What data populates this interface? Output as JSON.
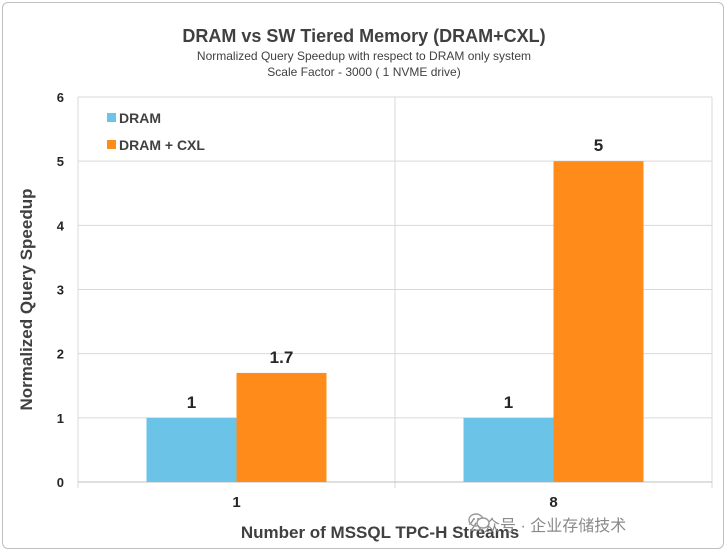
{
  "title": "DRAM vs SW Tiered Memory (DRAM+CXL)",
  "subtitle": "Normalized Query Speedup with respect to DRAM only system",
  "subtitle2": "Scale Factor - 3000 ( 1 NVME drive)",
  "watermark": "公众号 · 企业存储技术",
  "colors": {
    "DRAM": "#6cc3e8",
    "DRAM + CXL": "#ff8c1a",
    "grid": "#d9d9d9",
    "axis": "#bfbfbf"
  },
  "chart_data": {
    "type": "bar",
    "title": "DRAM vs SW Tiered Memory (DRAM+CXL)",
    "xlabel": "Number of MSSQL TPC-H Streams",
    "ylabel": "Normalized Query Speedup",
    "categories": [
      "1",
      "8"
    ],
    "series": [
      {
        "name": "DRAM",
        "values": [
          1,
          1
        ]
      },
      {
        "name": "DRAM + CXL",
        "values": [
          1.7,
          5
        ]
      }
    ],
    "data_labels": [
      [
        "1",
        "1"
      ],
      [
        "1.7",
        "5"
      ]
    ],
    "ylim": [
      0,
      6
    ],
    "yticks": [
      "0",
      "1",
      "2",
      "3",
      "4",
      "5",
      "6"
    ],
    "grid": true,
    "legend_position": "top-left"
  }
}
